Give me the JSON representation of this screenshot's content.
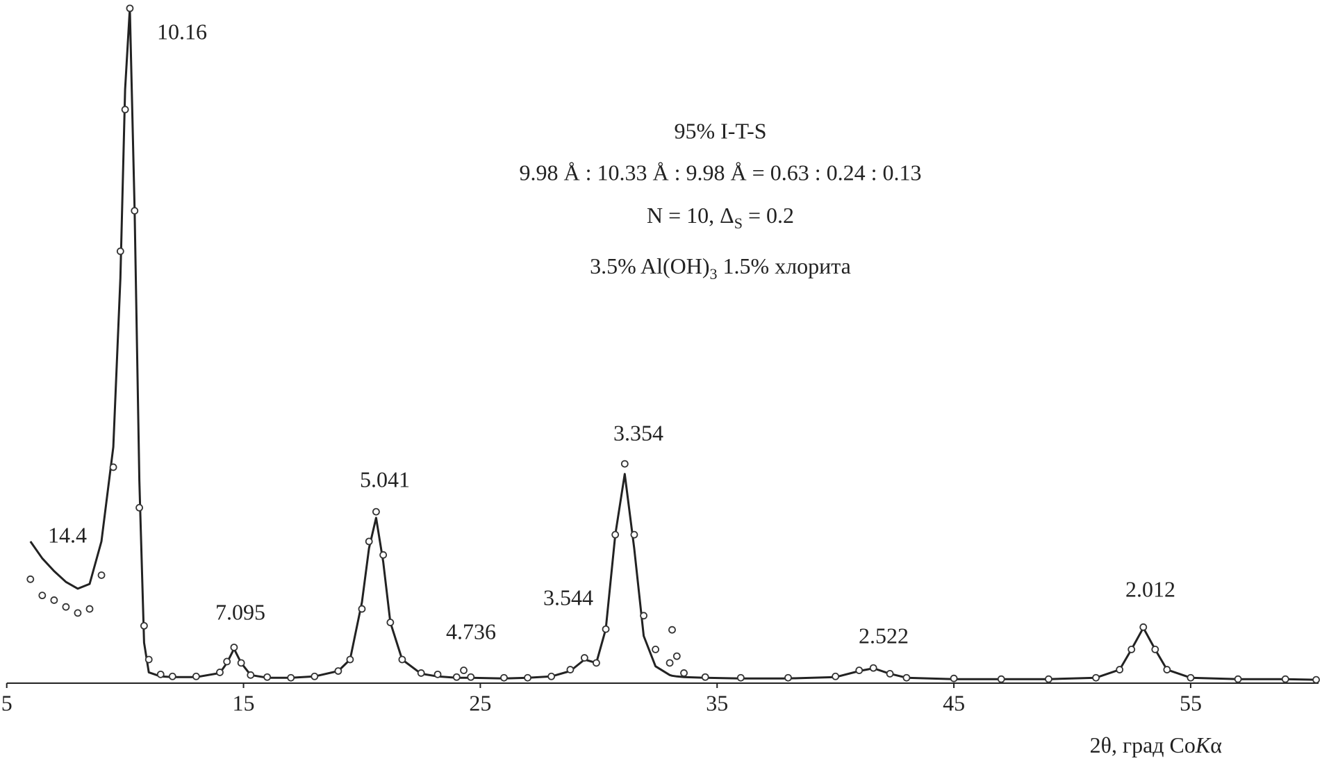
{
  "chart_data": {
    "type": "line",
    "info": [
      "95% I-T-S",
      "9.98 Å : 10.33 Å : 9.98 Å = 0.63 : 0.24 : 0.13",
      [
        "N = 10, Δ",
        "S",
        " = 0.2"
      ],
      [
        "3.5% Al(OH)",
        "3",
        " 1.5% хлорита"
      ]
    ],
    "x_label": [
      "2θ, град Co",
      "K",
      "α"
    ],
    "peak_labels": [
      "10.16",
      "14.4",
      "7.095",
      "5.041",
      "4.736",
      "3.544",
      "3.354",
      "2.522",
      "2.012"
    ],
    "xlim": [
      5,
      60.4
    ],
    "ylim": [
      0,
      100
    ],
    "xticks": [
      5,
      15,
      25,
      35,
      45,
      55
    ],
    "x": [
      6,
      6.5,
      7,
      7.5,
      8,
      8.5,
      9,
      9.5,
      9.8,
      10,
      10.2,
      10.4,
      10.6,
      10.8,
      11,
      11.5,
      12,
      13,
      14,
      14.3,
      14.6,
      14.9,
      15.3,
      16,
      17,
      18,
      19,
      19.5,
      20,
      20.3,
      20.6,
      20.9,
      21.2,
      21.7,
      22.5,
      23.2,
      24,
      24.3,
      24.6,
      26,
      27,
      28,
      28.8,
      29.4,
      29.9,
      30.3,
      30.7,
      31.1,
      31.5,
      31.9,
      32.4,
      33,
      33.1,
      33.3,
      33.6,
      34.5,
      36,
      38,
      40,
      41,
      41.6,
      42.3,
      43,
      45,
      47,
      49,
      51,
      52,
      52.5,
      53,
      53.5,
      54,
      55,
      57,
      59,
      60.3
    ],
    "series": [
      {
        "mark": "line",
        "color": "#222222",
        "values": [
          21,
          18.5,
          16.6,
          15,
          14,
          14.7,
          21,
          35,
          60,
          88,
          100,
          70,
          30,
          6,
          1.6,
          1,
          0.9,
          0.9,
          1.5,
          3,
          5.1,
          3,
          1.2,
          0.8,
          0.8,
          1,
          1.8,
          3.5,
          12,
          20,
          24.5,
          18,
          9,
          3.5,
          1.4,
          1,
          0.8,
          0.8,
          0.8,
          0.7,
          0.8,
          1,
          1.8,
          3.5,
          3,
          8,
          22,
          31,
          20,
          7,
          2.5,
          1.2,
          1.1,
          1,
          0.9,
          0.8,
          0.7,
          0.7,
          0.9,
          1.8,
          2.2,
          1.4,
          0.8,
          0.6,
          0.6,
          0.6,
          0.8,
          2,
          5,
          8.2,
          5,
          2,
          0.8,
          0.6,
          0.6,
          0.5
        ]
      },
      {
        "mark": "circle",
        "color": "#333333",
        "values": [
          15.4,
          13,
          12.3,
          11.3,
          10.4,
          11,
          16,
          32,
          64,
          85,
          100,
          70,
          26,
          8.5,
          3.5,
          1.3,
          1,
          1,
          1.6,
          3.2,
          5.3,
          3,
          1.2,
          0.9,
          0.8,
          1,
          1.8,
          3.5,
          11,
          21,
          25.4,
          19,
          9,
          3.5,
          1.5,
          1.3,
          0.9,
          1.9,
          0.9,
          0.8,
          0.8,
          1,
          2,
          3.75,
          3,
          8,
          22,
          32.5,
          22,
          10,
          5,
          3,
          7.9,
          4,
          1.5,
          0.9,
          0.8,
          0.8,
          1,
          1.9,
          2.25,
          1.4,
          0.8,
          0.7,
          0.6,
          0.6,
          0.8,
          2,
          5,
          8.3,
          5,
          2,
          0.8,
          0.6,
          0.6,
          0.5
        ]
      }
    ]
  }
}
